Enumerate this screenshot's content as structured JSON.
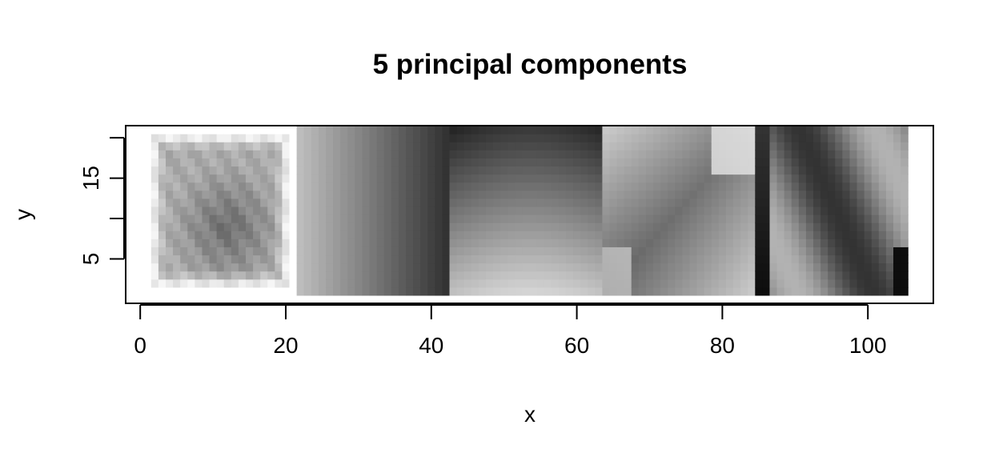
{
  "chart_data": {
    "type": "heatmap",
    "title": "5 principal components",
    "xlabel": "x",
    "ylabel": "y",
    "xlim": [
      -2,
      109
    ],
    "ylim": [
      -0.5,
      21.5
    ],
    "x_ticks": [
      0,
      20,
      40,
      60,
      80,
      100
    ],
    "y_ticks": [
      5,
      10,
      15,
      20
    ],
    "y_tick_labels": [
      "5",
      "",
      "15",
      ""
    ],
    "colormap": "grayscale",
    "cell_range": {
      "x": [
        1,
        105
      ],
      "y": [
        1,
        21
      ]
    },
    "panels": [
      {
        "x_range": [
          1,
          21
        ],
        "note_levels": "dark blob centered near x=12, y=9; light edges",
        "kind": "blob",
        "center": [
          12,
          9
        ],
        "base": 0.42,
        "bright_edge": 0.95
      },
      {
        "x_range": [
          22,
          42
        ],
        "kind": "hgrad",
        "left": 0.74,
        "right": 0.2
      },
      {
        "x_range": [
          43,
          63
        ],
        "kind": "vgrad",
        "top": 0.15,
        "bottom": 0.75
      },
      {
        "x_range": [
          64,
          84
        ],
        "kind": "diag",
        "low": 0.22,
        "high": 0.85
      },
      {
        "x_range": [
          85,
          105
        ],
        "kind": "wave",
        "low": 0.05,
        "high": 0.72
      }
    ]
  }
}
